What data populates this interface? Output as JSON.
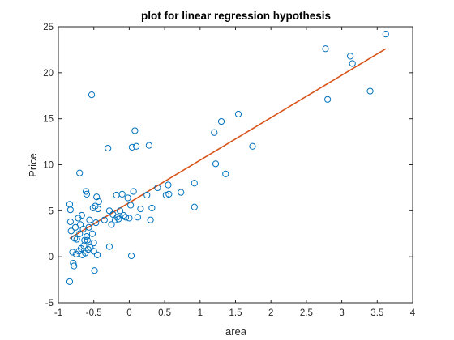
{
  "chart_data": {
    "type": "scatter",
    "title": "plot for linear regression hypothesis",
    "xlabel": "area",
    "ylabel": "Price",
    "xlim": [
      -1,
      4
    ],
    "ylim": [
      -5,
      25
    ],
    "xticks": [
      "-1",
      "-0.5",
      "0",
      "0.5",
      "1",
      "1.5",
      "2",
      "2.5",
      "3",
      "3.5",
      "4"
    ],
    "yticks": [
      "-5",
      "0",
      "5",
      "10",
      "15",
      "20",
      "25"
    ],
    "grid": false,
    "legend": "none",
    "marker_color": "#0072BD",
    "line_color": "#D95319",
    "points": [
      {
        "x": -0.84,
        "y": -2.7
      },
      {
        "x": -0.84,
        "y": 5.7
      },
      {
        "x": -0.83,
        "y": 5.1
      },
      {
        "x": -0.83,
        "y": 3.8
      },
      {
        "x": -0.82,
        "y": 2.8
      },
      {
        "x": -0.8,
        "y": 0.5
      },
      {
        "x": -0.79,
        "y": -0.7
      },
      {
        "x": -0.78,
        "y": -1.0
      },
      {
        "x": -0.77,
        "y": 2.0
      },
      {
        "x": -0.76,
        "y": 3.2
      },
      {
        "x": -0.75,
        "y": 0.3
      },
      {
        "x": -0.74,
        "y": 1.9
      },
      {
        "x": -0.72,
        "y": 4.2
      },
      {
        "x": -0.71,
        "y": 0.6
      },
      {
        "x": -0.7,
        "y": 9.1
      },
      {
        "x": -0.7,
        "y": 2.5
      },
      {
        "x": -0.69,
        "y": 3.5
      },
      {
        "x": -0.68,
        "y": 0.9
      },
      {
        "x": -0.67,
        "y": 4.5
      },
      {
        "x": -0.66,
        "y": 0.2
      },
      {
        "x": -0.65,
        "y": 3.0
      },
      {
        "x": -0.64,
        "y": 1.2
      },
      {
        "x": -0.63,
        "y": 1.8
      },
      {
        "x": -0.62,
        "y": 0.4
      },
      {
        "x": -0.61,
        "y": 7.1
      },
      {
        "x": -0.6,
        "y": 6.8
      },
      {
        "x": -0.6,
        "y": 2.2
      },
      {
        "x": -0.59,
        "y": 1.8
      },
      {
        "x": -0.58,
        "y": 0.8
      },
      {
        "x": -0.57,
        "y": 3.2
      },
      {
        "x": -0.56,
        "y": 4.0
      },
      {
        "x": -0.55,
        "y": 1.0
      },
      {
        "x": -0.53,
        "y": 17.6
      },
      {
        "x": -0.52,
        "y": 2.5
      },
      {
        "x": -0.51,
        "y": 5.3
      },
      {
        "x": -0.5,
        "y": 1.5
      },
      {
        "x": -0.5,
        "y": 0.6
      },
      {
        "x": -0.49,
        "y": -1.5
      },
      {
        "x": -0.48,
        "y": 5.5
      },
      {
        "x": -0.47,
        "y": 3.7
      },
      {
        "x": -0.46,
        "y": 6.5
      },
      {
        "x": -0.45,
        "y": 0.2
      },
      {
        "x": -0.44,
        "y": 5.2
      },
      {
        "x": -0.43,
        "y": 6.0
      },
      {
        "x": -0.35,
        "y": 4.0
      },
      {
        "x": -0.3,
        "y": 11.8
      },
      {
        "x": -0.28,
        "y": 1.1
      },
      {
        "x": -0.28,
        "y": 5.0
      },
      {
        "x": -0.25,
        "y": 3.5
      },
      {
        "x": -0.23,
        "y": 4.6
      },
      {
        "x": -0.2,
        "y": 4.0
      },
      {
        "x": -0.18,
        "y": 6.7
      },
      {
        "x": -0.17,
        "y": 4.3
      },
      {
        "x": -0.15,
        "y": 4.1
      },
      {
        "x": -0.13,
        "y": 5.0
      },
      {
        "x": -0.1,
        "y": 6.8
      },
      {
        "x": -0.08,
        "y": 4.5
      },
      {
        "x": -0.05,
        "y": 4.3
      },
      {
        "x": -0.02,
        "y": 6.4
      },
      {
        "x": 0.0,
        "y": 4.2
      },
      {
        "x": 0.02,
        "y": 5.6
      },
      {
        "x": 0.03,
        "y": 0.1
      },
      {
        "x": 0.04,
        "y": 11.9
      },
      {
        "x": 0.06,
        "y": 7.1
      },
      {
        "x": 0.08,
        "y": 13.7
      },
      {
        "x": 0.1,
        "y": 12.0
      },
      {
        "x": 0.12,
        "y": 4.3
      },
      {
        "x": 0.16,
        "y": 5.2
      },
      {
        "x": 0.25,
        "y": 6.7
      },
      {
        "x": 0.28,
        "y": 12.1
      },
      {
        "x": 0.3,
        "y": 4.0
      },
      {
        "x": 0.32,
        "y": 5.3
      },
      {
        "x": 0.4,
        "y": 7.5
      },
      {
        "x": 0.52,
        "y": 6.7
      },
      {
        "x": 0.55,
        "y": 7.8
      },
      {
        "x": 0.56,
        "y": 6.8
      },
      {
        "x": 0.73,
        "y": 7.0
      },
      {
        "x": 0.92,
        "y": 8.0
      },
      {
        "x": 0.92,
        "y": 5.4
      },
      {
        "x": 1.2,
        "y": 13.5
      },
      {
        "x": 1.22,
        "y": 10.1
      },
      {
        "x": 1.3,
        "y": 14.7
      },
      {
        "x": 1.36,
        "y": 9.0
      },
      {
        "x": 1.54,
        "y": 15.5
      },
      {
        "x": 1.74,
        "y": 12.0
      },
      {
        "x": 2.77,
        "y": 22.6
      },
      {
        "x": 2.8,
        "y": 17.1
      },
      {
        "x": 3.12,
        "y": 21.8
      },
      {
        "x": 3.15,
        "y": 21.0
      },
      {
        "x": 3.4,
        "y": 18.0
      },
      {
        "x": 3.62,
        "y": 24.2
      }
    ],
    "line": {
      "x": [
        -0.84,
        3.62
      ],
      "y": [
        2.0,
        22.6
      ]
    }
  }
}
